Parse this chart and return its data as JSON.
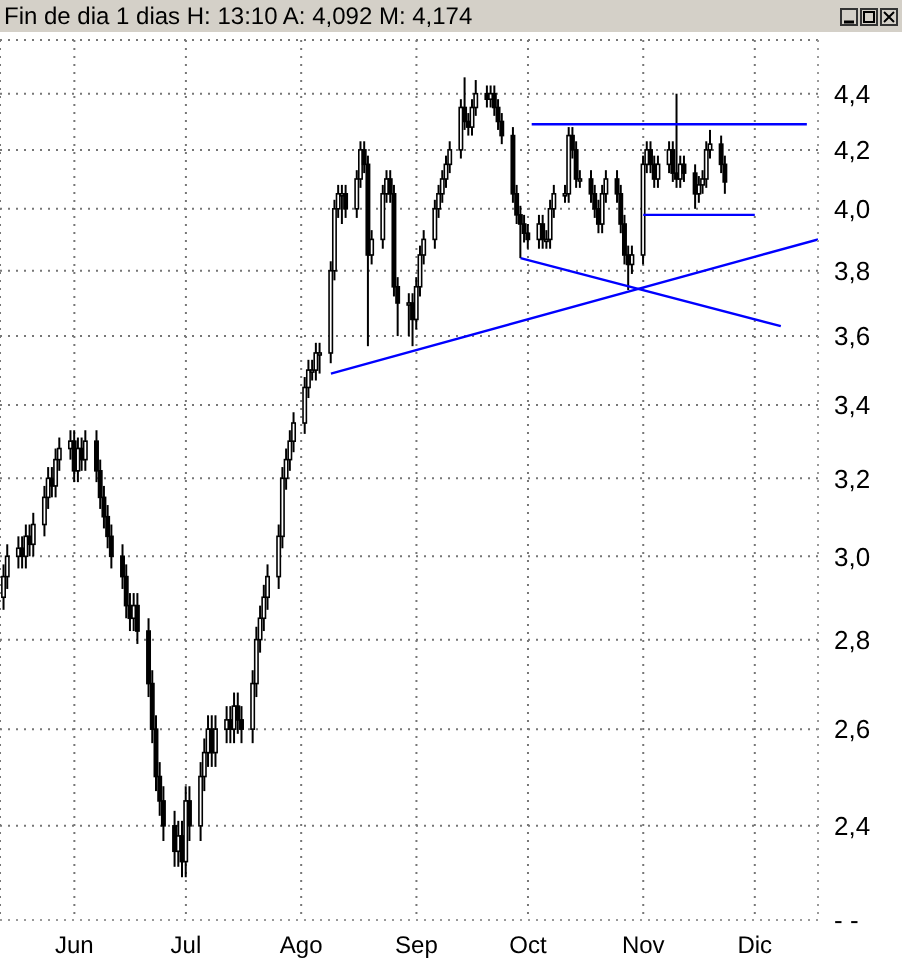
{
  "chart_data": {
    "type": "candlestick",
    "title": "Fin de dia 1 dias H: 13:10 A: 4,092 M: 4,174",
    "log": true,
    "grid": true,
    "xlim": [
      "--05-12",
      "--12-18"
    ],
    "xticks": [
      {
        "value": "--06-01",
        "label": "Jun"
      },
      {
        "value": "--07-01",
        "label": "Jul"
      },
      {
        "value": "--08-01",
        "label": "Ago"
      },
      {
        "value": "--09-01",
        "label": "Sep"
      },
      {
        "value": "--10-01",
        "label": "Oct"
      },
      {
        "value": "--11-01",
        "label": "Nov"
      },
      {
        "value": "--12-01",
        "label": "Dic"
      }
    ],
    "ylim": [
      2.22,
      4.6
    ],
    "yticks": [
      {
        "value": 2.22,
        "label": "- -"
      },
      {
        "value": 2.4,
        "label": "2,4"
      },
      {
        "value": 2.6,
        "label": "2,6"
      },
      {
        "value": 2.8,
        "label": "2,8"
      },
      {
        "value": 3.0,
        "label": "3,0"
      },
      {
        "value": 3.2,
        "label": "3,2"
      },
      {
        "value": 3.4,
        "label": "3,4"
      },
      {
        "value": 3.6,
        "label": "3,6"
      },
      {
        "value": 3.8,
        "label": "3,8"
      },
      {
        "value": 4.0,
        "label": "4,0"
      },
      {
        "value": 4.2,
        "label": "4,2"
      },
      {
        "value": 4.4,
        "label": "4,4"
      }
    ],
    "x": [
      "--05-13",
      "--05-14",
      "--05-17",
      "--05-18",
      "--05-19",
      "--05-20",
      "--05-21",
      "--05-24",
      "--05-25",
      "--05-26",
      "--05-27",
      "--05-28",
      "--05-31",
      "--06-01",
      "--06-02",
      "--06-03",
      "--06-04",
      "--06-07",
      "--06-08",
      "--06-09",
      "--06-10",
      "--06-11",
      "--06-14",
      "--06-15",
      "--06-16",
      "--06-17",
      "--06-18",
      "--06-21",
      "--06-22",
      "--06-23",
      "--06-24",
      "--06-25",
      "--06-28",
      "--06-29",
      "--06-30",
      "--07-01",
      "--07-02",
      "--07-05",
      "--07-06",
      "--07-07",
      "--07-08",
      "--07-09",
      "--07-12",
      "--07-13",
      "--07-14",
      "--07-15",
      "--07-16",
      "--07-19",
      "--07-20",
      "--07-21",
      "--07-22",
      "--07-23",
      "--07-26",
      "--07-27",
      "--07-28",
      "--07-29",
      "--07-30",
      "--08-02",
      "--08-03",
      "--08-04",
      "--08-05",
      "--08-06",
      "--08-09",
      "--08-10",
      "--08-11",
      "--08-12",
      "--08-13",
      "--08-16",
      "--08-17",
      "--08-18",
      "--08-19",
      "--08-20",
      "--08-23",
      "--08-24",
      "--08-25",
      "--08-26",
      "--08-27",
      "--08-30",
      "--08-31",
      "--09-01",
      "--09-02",
      "--09-03",
      "--09-06",
      "--09-07",
      "--09-08",
      "--09-09",
      "--09-10",
      "--09-13",
      "--09-14",
      "--09-15",
      "--09-16",
      "--09-17",
      "--09-20",
      "--09-21",
      "--09-22",
      "--09-23",
      "--09-24",
      "--09-27",
      "--09-28",
      "--09-29",
      "--09-30",
      "--10-01",
      "--10-04",
      "--10-05",
      "--10-06",
      "--10-07",
      "--10-08",
      "--10-11",
      "--10-12",
      "--10-13",
      "--10-14",
      "--10-15",
      "--10-18",
      "--10-19",
      "--10-20",
      "--10-21",
      "--10-22",
      "--10-25",
      "--10-26",
      "--10-27",
      "--10-28",
      "--10-29",
      "--11-01",
      "--11-02",
      "--11-03",
      "--11-04",
      "--11-05",
      "--11-08",
      "--11-09",
      "--11-10",
      "--11-11",
      "--11-12",
      "--11-15",
      "--11-16",
      "--11-17",
      "--11-18",
      "--11-19",
      "--11-22",
      "--11-23"
    ],
    "ohlc": [
      [
        2.9,
        2.98,
        2.87,
        2.95
      ],
      [
        2.95,
        3.03,
        2.92,
        3.0
      ],
      [
        3.0,
        3.05,
        2.97,
        3.02
      ],
      [
        3.02,
        3.05,
        2.97,
        3.0
      ],
      [
        3.0,
        3.08,
        2.97,
        3.05
      ],
      [
        3.05,
        3.08,
        3.0,
        3.03
      ],
      [
        3.03,
        3.11,
        3.0,
        3.08
      ],
      [
        3.08,
        3.18,
        3.05,
        3.15
      ],
      [
        3.15,
        3.23,
        3.12,
        3.2
      ],
      [
        3.2,
        3.23,
        3.15,
        3.18
      ],
      [
        3.18,
        3.28,
        3.15,
        3.25
      ],
      [
        3.25,
        3.31,
        3.22,
        3.28
      ],
      [
        3.28,
        3.33,
        3.25,
        3.3
      ],
      [
        3.3,
        3.33,
        3.19,
        3.22
      ],
      [
        3.22,
        3.31,
        3.19,
        3.28
      ],
      [
        3.28,
        3.31,
        3.22,
        3.25
      ],
      [
        3.25,
        3.33,
        3.22,
        3.3
      ],
      [
        3.3,
        3.33,
        3.19,
        3.22
      ],
      [
        3.22,
        3.25,
        3.12,
        3.15
      ],
      [
        3.15,
        3.18,
        3.07,
        3.1
      ],
      [
        3.1,
        3.13,
        3.02,
        3.05
      ],
      [
        3.05,
        3.08,
        2.97,
        3.0
      ],
      [
        3.0,
        3.03,
        2.92,
        2.95
      ],
      [
        2.95,
        2.98,
        2.85,
        2.88
      ],
      [
        2.88,
        2.91,
        2.82,
        2.85
      ],
      [
        2.85,
        2.91,
        2.82,
        2.88
      ],
      [
        2.88,
        2.91,
        2.79,
        2.82
      ],
      [
        2.82,
        2.85,
        2.67,
        2.7
      ],
      [
        2.7,
        2.73,
        2.57,
        2.6
      ],
      [
        2.6,
        2.63,
        2.47,
        2.5
      ],
      [
        2.5,
        2.53,
        2.42,
        2.45
      ],
      [
        2.45,
        2.48,
        2.37,
        2.4
      ],
      [
        2.4,
        2.43,
        2.32,
        2.35
      ],
      [
        2.35,
        2.41,
        2.32,
        2.38
      ],
      [
        2.38,
        2.41,
        2.3,
        2.33
      ],
      [
        2.33,
        2.48,
        2.3,
        2.45
      ],
      [
        2.45,
        2.48,
        2.37,
        2.4
      ],
      [
        2.4,
        2.53,
        2.37,
        2.5
      ],
      [
        2.5,
        2.58,
        2.47,
        2.55
      ],
      [
        2.55,
        2.63,
        2.52,
        2.6
      ],
      [
        2.6,
        2.63,
        2.52,
        2.55
      ],
      [
        2.55,
        2.63,
        2.52,
        2.6
      ],
      [
        2.6,
        2.65,
        2.57,
        2.62
      ],
      [
        2.62,
        2.65,
        2.57,
        2.6
      ],
      [
        2.6,
        2.68,
        2.57,
        2.65
      ],
      [
        2.65,
        2.68,
        2.59,
        2.62
      ],
      [
        2.62,
        2.65,
        2.57,
        2.6
      ],
      [
        2.6,
        2.73,
        2.57,
        2.7
      ],
      [
        2.7,
        2.83,
        2.67,
        2.8
      ],
      [
        2.8,
        2.88,
        2.77,
        2.85
      ],
      [
        2.85,
        2.93,
        2.82,
        2.9
      ],
      [
        2.9,
        2.98,
        2.87,
        2.95
      ],
      [
        2.95,
        3.08,
        2.92,
        3.05
      ],
      [
        3.05,
        3.23,
        3.02,
        3.2
      ],
      [
        3.2,
        3.28,
        3.17,
        3.25
      ],
      [
        3.25,
        3.33,
        3.22,
        3.3
      ],
      [
        3.3,
        3.38,
        3.27,
        3.35
      ],
      [
        3.35,
        3.48,
        3.32,
        3.45
      ],
      [
        3.45,
        3.53,
        3.42,
        3.5
      ],
      [
        3.5,
        3.53,
        3.47,
        3.5
      ],
      [
        3.5,
        3.58,
        3.47,
        3.55
      ],
      [
        3.55,
        3.58,
        3.49,
        3.55
      ],
      [
        3.55,
        3.83,
        3.52,
        3.8
      ],
      [
        3.8,
        4.03,
        3.77,
        4.0
      ],
      [
        4.0,
        4.08,
        3.97,
        4.05
      ],
      [
        4.05,
        4.08,
        3.95,
        4.05
      ],
      [
        4.05,
        4.08,
        3.97,
        4.0
      ],
      [
        4.0,
        4.13,
        3.97,
        4.1
      ],
      [
        4.1,
        4.23,
        4.07,
        4.2
      ],
      [
        4.2,
        4.23,
        4.12,
        4.15
      ],
      [
        4.15,
        4.18,
        3.57,
        3.85
      ],
      [
        3.85,
        3.93,
        3.82,
        3.9
      ],
      [
        3.9,
        4.08,
        3.87,
        4.05
      ],
      [
        4.05,
        4.13,
        4.02,
        4.1
      ],
      [
        4.1,
        4.13,
        4.02,
        4.05
      ],
      [
        4.05,
        4.08,
        3.72,
        3.75
      ],
      [
        3.75,
        3.78,
        3.6,
        3.7
      ],
      [
        3.7,
        3.73,
        3.6,
        3.7
      ],
      [
        3.7,
        3.73,
        3.57,
        3.65
      ],
      [
        3.65,
        3.78,
        3.62,
        3.75
      ],
      [
        3.75,
        3.88,
        3.72,
        3.85
      ],
      [
        3.85,
        3.93,
        3.82,
        3.9
      ],
      [
        3.9,
        4.03,
        3.87,
        4.0
      ],
      [
        4.0,
        4.08,
        3.97,
        4.05
      ],
      [
        4.05,
        4.13,
        4.02,
        4.1
      ],
      [
        4.1,
        4.18,
        4.07,
        4.15
      ],
      [
        4.15,
        4.23,
        4.12,
        4.2
      ],
      [
        4.2,
        4.38,
        4.17,
        4.35
      ],
      [
        4.35,
        4.46,
        4.27,
        4.3
      ],
      [
        4.3,
        4.33,
        4.25,
        4.28
      ],
      [
        4.28,
        4.38,
        4.25,
        4.35
      ],
      [
        4.35,
        4.45,
        4.32,
        4.4
      ],
      [
        4.4,
        4.43,
        4.35,
        4.38
      ],
      [
        4.38,
        4.43,
        4.35,
        4.4
      ],
      [
        4.4,
        4.43,
        4.32,
        4.35
      ],
      [
        4.35,
        4.38,
        4.27,
        4.3
      ],
      [
        4.3,
        4.33,
        4.22,
        4.25
      ],
      [
        4.25,
        4.28,
        4.02,
        4.05
      ],
      [
        4.05,
        4.08,
        3.95,
        3.98
      ],
      [
        3.98,
        4.01,
        3.84,
        3.95
      ],
      [
        3.95,
        3.98,
        3.89,
        3.92
      ],
      [
        3.92,
        3.95,
        3.87,
        3.9
      ],
      [
        3.9,
        3.98,
        3.87,
        3.95
      ],
      [
        3.95,
        3.98,
        3.87,
        3.9
      ],
      [
        3.9,
        3.93,
        3.87,
        3.9
      ],
      [
        3.9,
        4.03,
        3.87,
        4.0
      ],
      [
        4.0,
        4.08,
        3.97,
        4.05
      ],
      [
        4.05,
        4.08,
        4.02,
        4.05
      ],
      [
        4.05,
        4.28,
        4.02,
        4.25
      ],
      [
        4.25,
        4.28,
        4.17,
        4.2
      ],
      [
        4.2,
        4.23,
        4.07,
        4.1
      ],
      [
        4.1,
        4.13,
        4.07,
        4.1
      ],
      [
        4.1,
        4.13,
        4.02,
        4.05
      ],
      [
        4.05,
        4.08,
        3.97,
        4.0
      ],
      [
        4.0,
        4.03,
        3.92,
        3.95
      ],
      [
        3.95,
        4.08,
        3.92,
        4.05
      ],
      [
        4.05,
        4.13,
        4.02,
        4.1
      ],
      [
        4.1,
        4.13,
        4.02,
        4.05
      ],
      [
        4.05,
        4.08,
        3.92,
        3.95
      ],
      [
        3.95,
        3.98,
        3.82,
        3.85
      ],
      [
        3.85,
        3.88,
        3.74,
        3.82
      ],
      [
        3.82,
        3.88,
        3.79,
        3.85
      ],
      [
        3.85,
        4.18,
        3.82,
        4.15
      ],
      [
        4.15,
        4.23,
        4.12,
        4.2
      ],
      [
        4.2,
        4.23,
        4.12,
        4.15
      ],
      [
        4.15,
        4.18,
        4.07,
        4.1
      ],
      [
        4.1,
        4.18,
        4.07,
        4.15
      ],
      [
        4.15,
        4.23,
        4.12,
        4.2
      ],
      [
        4.2,
        4.23,
        4.09,
        4.12
      ],
      [
        4.12,
        4.4,
        4.07,
        4.1
      ],
      [
        4.1,
        4.18,
        4.07,
        4.15
      ],
      [
        4.15,
        4.18,
        4.09,
        4.12
      ],
      [
        4.12,
        4.15,
        4.0,
        4.05
      ],
      [
        4.05,
        4.11,
        4.02,
        4.08
      ],
      [
        4.08,
        4.13,
        4.05,
        4.1
      ],
      [
        4.1,
        4.23,
        4.07,
        4.2
      ],
      [
        4.2,
        4.27,
        4.17,
        4.22
      ],
      [
        4.22,
        4.25,
        4.12,
        4.15
      ],
      [
        4.15,
        4.18,
        4.05,
        4.09
      ]
    ],
    "series": [
      {
        "type": "line",
        "color": "#0000ff",
        "x": [
          "--08-09",
          "--12-18"
        ],
        "values": [
          3.49,
          3.9
        ]
      },
      {
        "type": "line",
        "color": "#0000ff",
        "x": [
          "--09-29",
          "--12-08"
        ],
        "values": [
          3.84,
          3.63
        ]
      },
      {
        "type": "line",
        "color": "#0000ff",
        "x": [
          "--10-02",
          "--12-15"
        ],
        "values": [
          4.29,
          4.29
        ]
      },
      {
        "type": "line",
        "color": "#0000ff",
        "x": [
          "--11-01",
          "--12-01"
        ],
        "values": [
          3.98,
          3.98
        ]
      }
    ]
  }
}
